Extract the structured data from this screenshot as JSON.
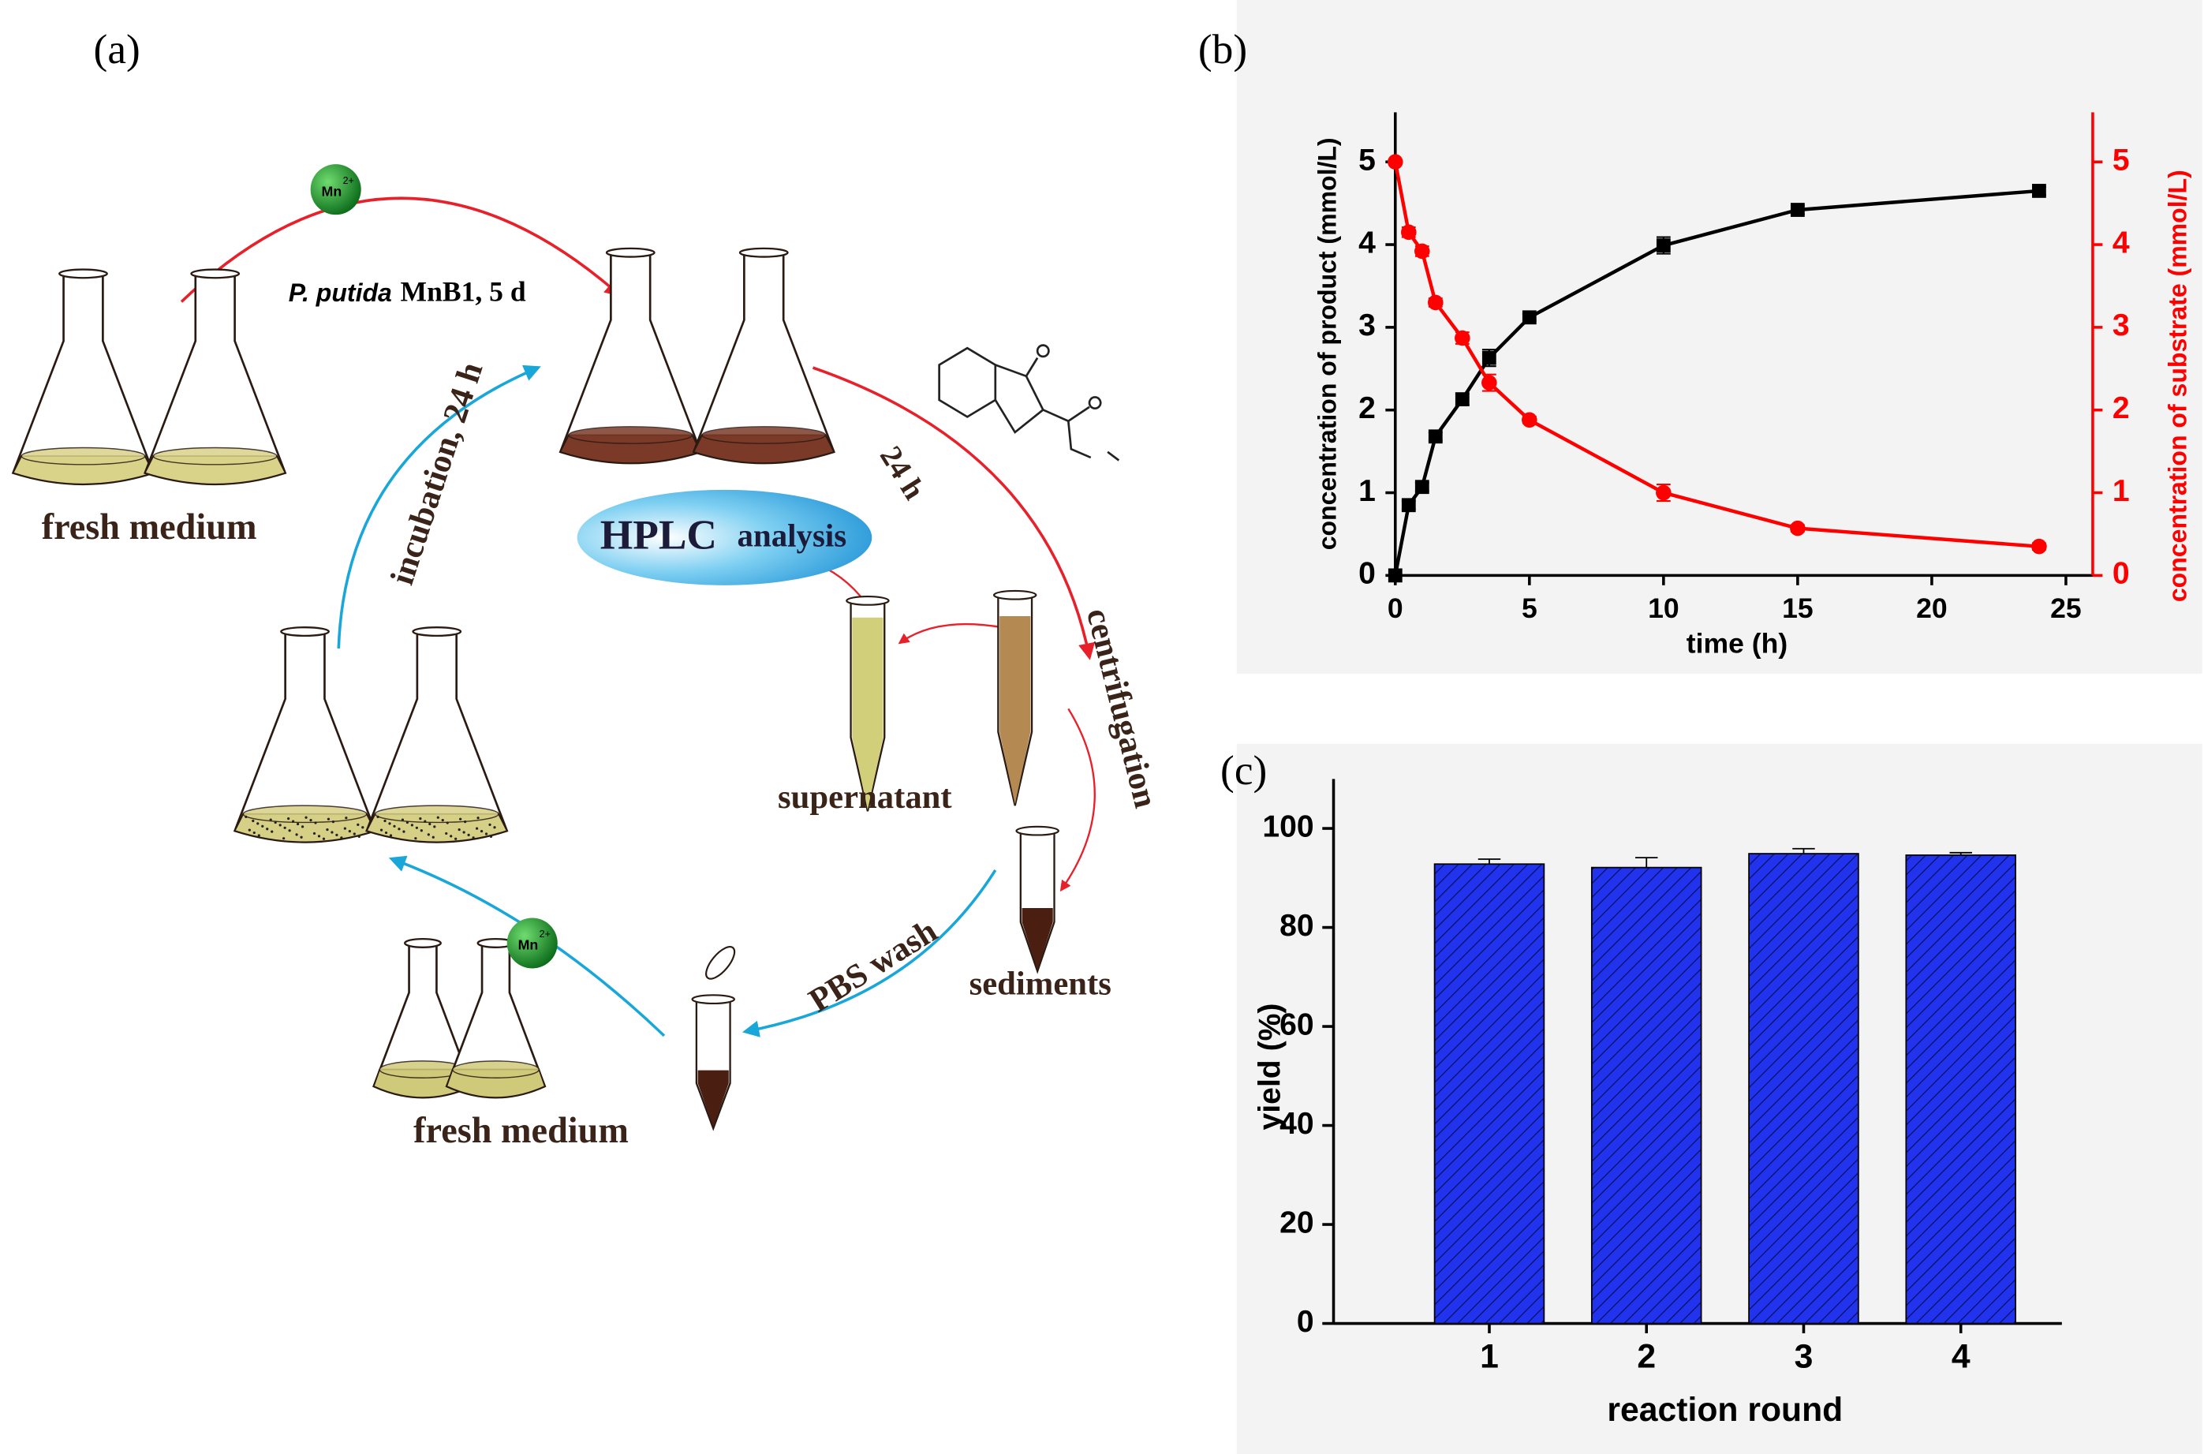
{
  "panels": [
    "(a)",
    "(b)",
    "(c)"
  ],
  "diagram": {
    "strain": "P. putida",
    "condition": "MnB1, 5 d",
    "mn": [
      "Mn",
      "2+"
    ],
    "fresh_medium_top": "fresh medium",
    "fresh_medium_bottom": "fresh medium",
    "step_24h": "24 h",
    "hplc": "HPLC",
    "analysis": "analysis",
    "centrifugation": "centrifugation",
    "supernatant": "supernatant",
    "sediments": "sediments",
    "pbs_wash": "PBS wash",
    "incubation": "incubation, 24 h"
  },
  "chart_data": [
    {
      "type": "line",
      "x_label": "time (h)",
      "y_label": "concentration of product (mmol/L)",
      "y2_label": "concentration of substrate (mmol/L)",
      "x": [
        0,
        0.5,
        1,
        1.5,
        2.5,
        3.5,
        5,
        10,
        15,
        24
      ],
      "series": [
        {
          "name": "product",
          "color": "#000000",
          "marker": "square",
          "values": [
            0,
            0.85,
            1.07,
            1.68,
            2.13,
            2.63,
            3.12,
            3.99,
            4.42,
            4.65
          ],
          "errors": [
            0,
            0.05,
            0.05,
            0.05,
            0.07,
            0.1,
            0.04,
            0.1,
            0.05,
            0.05
          ]
        },
        {
          "name": "substrate",
          "color": "#ff0000",
          "marker": "circle",
          "axis": "y2",
          "values": [
            5.0,
            4.15,
            3.92,
            3.3,
            2.87,
            2.33,
            1.88,
            1.0,
            0.57,
            0.35
          ],
          "errors": [
            0,
            0.06,
            0.06,
            0.05,
            0.07,
            0.1,
            0.04,
            0.1,
            0.04,
            0.04
          ]
        }
      ],
      "xlim": [
        0,
        26
      ],
      "xticks": [
        0,
        5,
        10,
        15,
        20,
        25
      ],
      "ylim": [
        0,
        5.6
      ],
      "yticks": [
        0,
        1,
        2,
        3,
        4,
        5
      ],
      "y2lim": [
        0,
        5.6
      ],
      "y2ticks": [
        0,
        1,
        2,
        3,
        4,
        5
      ]
    },
    {
      "type": "bar",
      "x_label": "reaction round",
      "y_label": "yield (%)",
      "categories": [
        "1",
        "2",
        "3",
        "4"
      ],
      "values": [
        92.8,
        92.1,
        94.9,
        94.6
      ],
      "errors": [
        1,
        2,
        1,
        0.5
      ],
      "color": "#2233ee",
      "hatch": true,
      "ylim": [
        0,
        110
      ],
      "yticks": [
        0,
        20,
        40,
        60,
        80,
        100
      ]
    }
  ]
}
